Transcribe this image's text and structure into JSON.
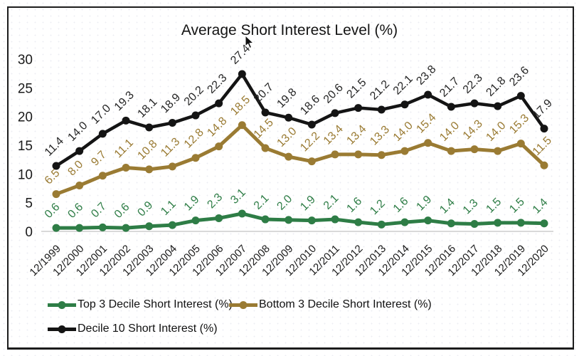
{
  "chart_data": {
    "type": "line",
    "title": "Average Short Interest Level (%)",
    "categories": [
      "12/1999",
      "12/2000",
      "12/2001",
      "12/2002",
      "12/2003",
      "12/2004",
      "12/2005",
      "12/2006",
      "12/2007",
      "12/2008",
      "12/2009",
      "12/2010",
      "12/2011",
      "12/2012",
      "12/2013",
      "12/2014",
      "12/2015",
      "12/2016",
      "12/2017",
      "12/2018",
      "12/2019",
      "12/2020"
    ],
    "series": [
      {
        "name": "Top 3 Decile Short Interest (%)",
        "color": "#2e7d46",
        "values": [
          0.6,
          0.6,
          0.7,
          0.6,
          0.9,
          1.1,
          1.9,
          2.3,
          3.1,
          2.1,
          2.0,
          1.9,
          2.1,
          1.6,
          1.2,
          1.6,
          1.9,
          1.4,
          1.3,
          1.5,
          1.5,
          1.4
        ]
      },
      {
        "name": "Bottom 3 Decile Short Interest (%)",
        "color": "#9a7b33",
        "values": [
          6.5,
          8.0,
          9.7,
          11.1,
          10.8,
          11.3,
          12.8,
          14.8,
          18.5,
          14.5,
          13.0,
          12.2,
          13.4,
          13.4,
          13.3,
          14.0,
          15.4,
          14.0,
          14.3,
          14.0,
          15.3,
          11.5
        ]
      },
      {
        "name": "Decile 10 Short Interest (%)",
        "color": "#141414",
        "values": [
          11.4,
          14.0,
          17.0,
          19.3,
          18.1,
          18.9,
          20.2,
          22.3,
          27.4,
          20.7,
          19.8,
          18.6,
          20.6,
          21.5,
          21.2,
          22.1,
          23.8,
          21.7,
          22.3,
          21.8,
          23.6,
          17.9
        ]
      }
    ],
    "ylim": [
      0,
      30
    ],
    "yticks": [
      0,
      5,
      10,
      15,
      20,
      25,
      30
    ],
    "xlabel": "",
    "ylabel": "",
    "grid": false,
    "legend_position": "bottom-left",
    "axis_color": "#1a1a1a",
    "baseline_color": "#d9d9d9",
    "black_label_color": "#262626"
  }
}
